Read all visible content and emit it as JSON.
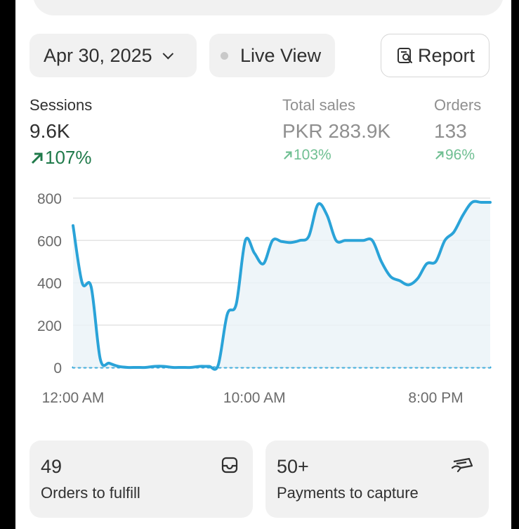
{
  "toolbar": {
    "date_label": "Apr 30, 2025",
    "live_label": "Live View",
    "report_label": "Report"
  },
  "metrics": [
    {
      "label": "Sessions",
      "value": "9.6K",
      "change": "107%"
    },
    {
      "label": "Total sales",
      "value": "PKR 283.9K",
      "change": "103%"
    },
    {
      "label": "Orders",
      "value": "133",
      "change": "96%"
    }
  ],
  "chart_data": {
    "type": "line",
    "yticks": [
      "800",
      "600",
      "400",
      "200",
      "0"
    ],
    "xticks": [
      "12:00 AM",
      "10:00 AM",
      "8:00 PM"
    ],
    "ylim": [
      0,
      800
    ],
    "x_hours": [
      0,
      0.5,
      1,
      1.5,
      2,
      2.5,
      3,
      3.5,
      4,
      4.5,
      5,
      5.5,
      6,
      6.5,
      7,
      7.5,
      8,
      8.5,
      9,
      9.5,
      10,
      10.5,
      11,
      11.5,
      12,
      12.5,
      13,
      13.5,
      14,
      14.5,
      15,
      15.5,
      16,
      16.5,
      17,
      17.5,
      18,
      18.5,
      19,
      19.5,
      20,
      20.5,
      21,
      21.5,
      22,
      22.5,
      23
    ],
    "series": [
      {
        "values": [
          670,
          400,
          380,
          40,
          20,
          5,
          0,
          0,
          0,
          5,
          5,
          0,
          0,
          0,
          5,
          5,
          10,
          250,
          300,
          600,
          540,
          490,
          600,
          595,
          590,
          600,
          620,
          770,
          720,
          600,
          600,
          600,
          600,
          600,
          500,
          430,
          410,
          390,
          420,
          490,
          500,
          600,
          640,
          720,
          780,
          780,
          780
        ],
        "style": "solid",
        "color": "#2aa3d8"
      },
      {
        "values": [
          0,
          0,
          0,
          0,
          0,
          0,
          0,
          0,
          0,
          0,
          0,
          0,
          0,
          0,
          0,
          0,
          0,
          0,
          0,
          0,
          0,
          0,
          0,
          0,
          0,
          0,
          0,
          0,
          0,
          0,
          0,
          0,
          0,
          0,
          0,
          0,
          0,
          0,
          0,
          0,
          0,
          0,
          0,
          0,
          0,
          0,
          0
        ],
        "style": "dotted",
        "color": "#2aa3d8"
      }
    ]
  },
  "cards": [
    {
      "count": "49",
      "label": "Orders to fulfill",
      "icon": "inbox-icon"
    },
    {
      "count": "50+",
      "label": "Payments to capture",
      "icon": "payment-icon"
    }
  ]
}
